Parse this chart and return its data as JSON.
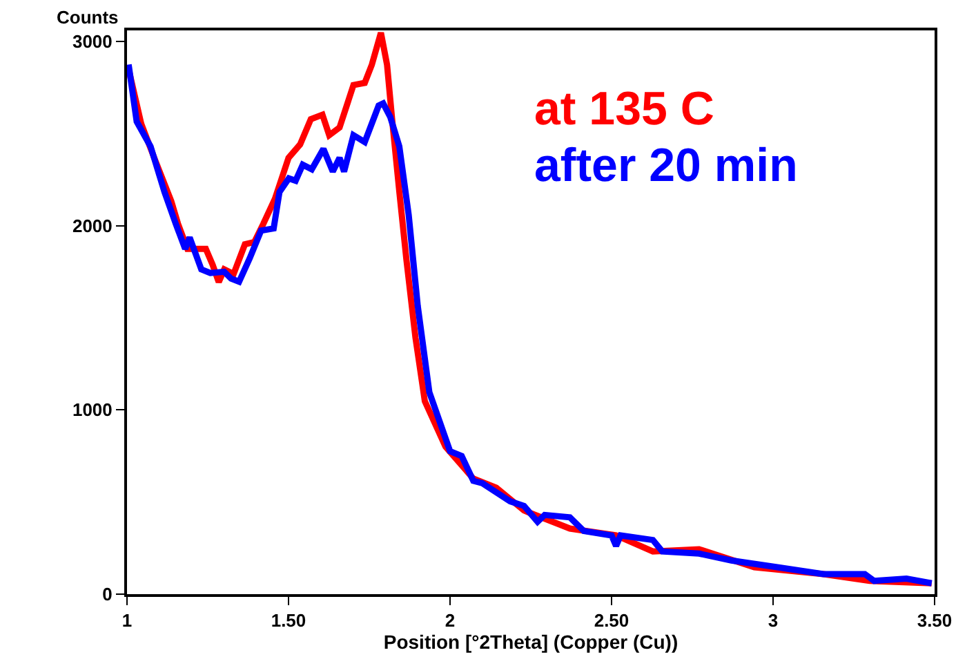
{
  "chart_data": {
    "type": "line",
    "xlabel": "Position [°2Theta] (Copper (Cu))",
    "ylabel": "Counts",
    "xlim": [
      1,
      3.5
    ],
    "ylim": [
      0,
      3060
    ],
    "xticks": [
      1,
      {
        "value": 1.5,
        "label": "1.50"
      },
      2,
      {
        "value": 2.5,
        "label": "2.50"
      },
      3,
      {
        "value": 3.5,
        "label": "3.50"
      }
    ],
    "yticks": [
      0,
      1000,
      2000,
      3000
    ],
    "legend": false,
    "marker": "none",
    "line_style": "solid",
    "series": [
      {
        "name": "at 135 C",
        "color": "#ff0000",
        "x": [
          1.005,
          1.044,
          1.087,
          1.137,
          1.158,
          1.187,
          1.244,
          1.265,
          1.284,
          1.301,
          1.33,
          1.365,
          1.394,
          1.422,
          1.458,
          1.5,
          1.536,
          1.569,
          1.605,
          1.626,
          1.658,
          1.701,
          1.736,
          1.758,
          1.786,
          1.805,
          1.822,
          1.843,
          1.865,
          1.893,
          1.922,
          1.986,
          2.072,
          2.143,
          2.229,
          2.371,
          2.514,
          2.628,
          2.771,
          2.942,
          3.156,
          3.299,
          3.491
        ],
        "values": [
          2850,
          2553,
          2356,
          2133,
          2010,
          1874,
          1874,
          1788,
          1694,
          1763,
          1738,
          1899,
          1911,
          2010,
          2146,
          2368,
          2441,
          2578,
          2602,
          2491,
          2533,
          2763,
          2775,
          2874,
          3047,
          2874,
          2553,
          2185,
          1815,
          1393,
          1047,
          800,
          627,
          578,
          454,
          356,
          319,
          232,
          244,
          146,
          109,
          72,
          59
        ]
      },
      {
        "name": "after 20 min",
        "color": "#0000ff",
        "x": [
          1.005,
          1.03,
          1.073,
          1.116,
          1.151,
          1.18,
          1.194,
          1.23,
          1.258,
          1.301,
          1.322,
          1.347,
          1.38,
          1.415,
          1.454,
          1.472,
          1.501,
          1.522,
          1.544,
          1.572,
          1.608,
          1.637,
          1.658,
          1.672,
          1.701,
          1.736,
          1.779,
          1.793,
          1.815,
          1.843,
          1.872,
          1.9,
          1.936,
          2.0,
          2.036,
          2.072,
          2.1,
          2.186,
          2.229,
          2.271,
          2.293,
          2.371,
          2.414,
          2.5,
          2.514,
          2.528,
          2.628,
          2.657,
          2.771,
          2.871,
          3.013,
          3.156,
          3.284,
          3.313,
          3.413,
          3.491
        ],
        "values": [
          2875,
          2565,
          2430,
          2183,
          2010,
          1874,
          1936,
          1763,
          1743,
          1750,
          1713,
          1696,
          1824,
          1973,
          1985,
          2183,
          2257,
          2244,
          2331,
          2306,
          2417,
          2294,
          2368,
          2294,
          2491,
          2454,
          2652,
          2664,
          2590,
          2430,
          2059,
          1565,
          1096,
          776,
          750,
          615,
          602,
          504,
          479,
          393,
          430,
          417,
          343,
          319,
          262,
          319,
          294,
          232,
          220,
          183,
          146,
          109,
          109,
          72,
          84,
          59
        ]
      }
    ]
  }
}
